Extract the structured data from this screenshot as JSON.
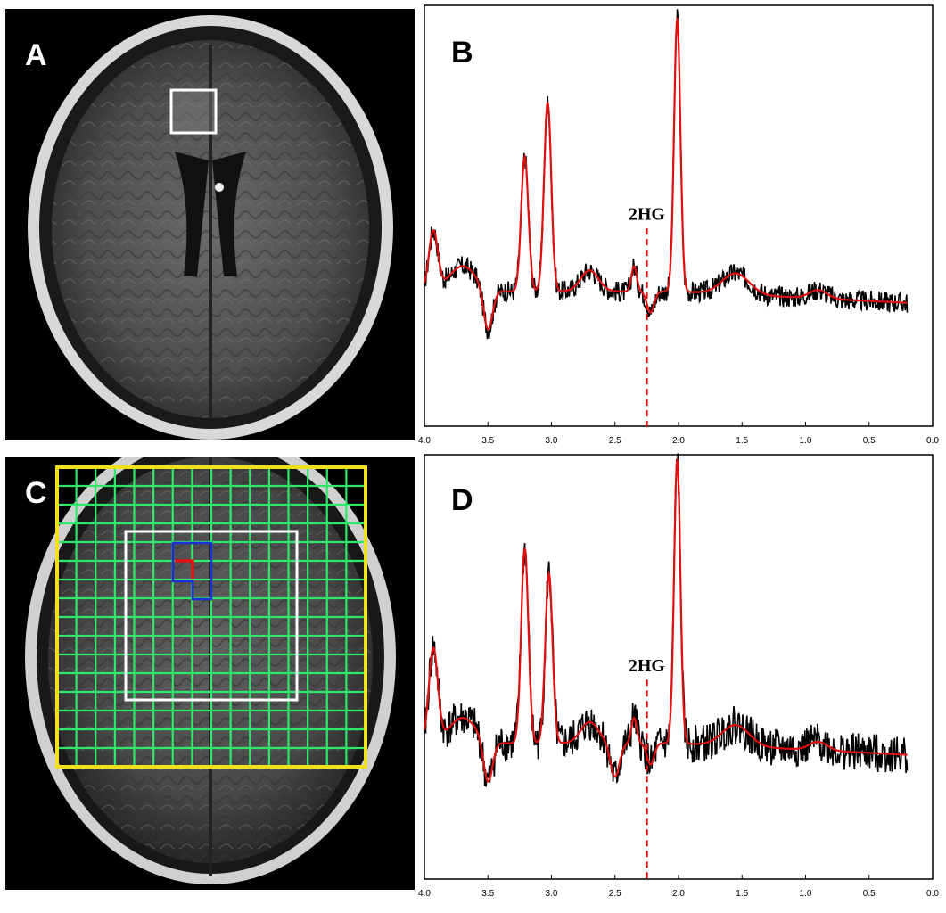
{
  "panels": {
    "a": {
      "letter": "A"
    },
    "b": {
      "letter": "B"
    },
    "c": {
      "letter": "C"
    },
    "d": {
      "letter": "D"
    }
  },
  "colors": {
    "measured": "#000000",
    "fit": "#e01010",
    "marker": "#e01010",
    "voxel_box": "#ffffff",
    "grid": "#2ee86a",
    "grid_border": "#f0e020",
    "roi_blue": "#1a2fd8",
    "roi_red": "#e01010"
  },
  "chart_data": [
    {
      "type": "line",
      "panel": "B",
      "x_axis": {
        "range": [
          4.0,
          0.0
        ],
        "reversed": true,
        "ticks": [
          "4.0",
          "3.5",
          "3.0",
          "2.5",
          "2.0",
          "1.5",
          "1.0",
          "0.5",
          "0.0"
        ]
      },
      "y_axis": {
        "range": [
          0,
          1
        ],
        "shown": false
      },
      "annotation": {
        "text": "2HG",
        "x": 2.25
      },
      "series": [
        {
          "role": "measured",
          "color": "#000000",
          "x_range": [
            4.0,
            0.2
          ],
          "noise": 0.025
        },
        {
          "role": "fit",
          "color": "#e01010",
          "peaks": [
            {
              "x": 3.93,
              "height": 0.44
            },
            {
              "x": 3.21,
              "height": 0.62
            },
            {
              "x": 3.03,
              "height": 0.75
            },
            {
              "x": 2.01,
              "height": 0.95
            }
          ]
        }
      ]
    },
    {
      "type": "line",
      "panel": "D",
      "x_axis": {
        "range": [
          4.0,
          0.0
        ],
        "reversed": true,
        "ticks": [
          "4.0",
          "3.5",
          "3.0",
          "2.5",
          "2.0",
          "1.5",
          "1.0",
          "0.5",
          "0.0"
        ]
      },
      "y_axis": {
        "range": [
          0,
          1
        ],
        "shown": false
      },
      "annotation": {
        "text": "2HG",
        "x": 2.25
      },
      "series": [
        {
          "role": "measured",
          "color": "#000000",
          "x_range": [
            4.0,
            0.2
          ],
          "noise": 0.045
        },
        {
          "role": "fit",
          "color": "#e01010",
          "peaks": [
            {
              "x": 3.93,
              "height": 0.52
            },
            {
              "x": 3.21,
              "height": 0.76
            },
            {
              "x": 3.02,
              "height": 0.7
            },
            {
              "x": 2.5,
              "height": 0.22
            },
            {
              "x": 2.01,
              "height": 0.97
            }
          ]
        }
      ]
    }
  ]
}
